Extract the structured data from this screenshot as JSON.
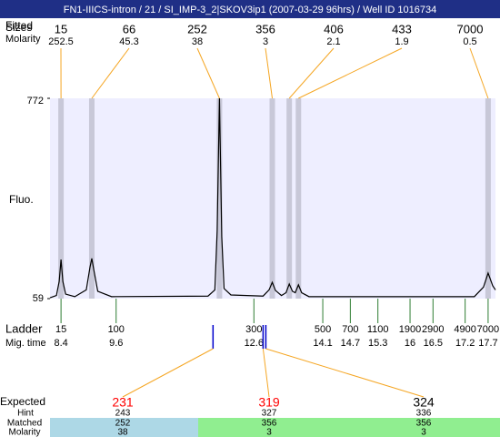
{
  "title": "FN1-IIICS-intron / 21 / SI_IMP-3_2|SKOV3ip1 (2007-03-29 96hrs) / Well ID 1016734",
  "chart_data": {
    "type": "line",
    "y_label": "Fluo.",
    "xlim": [
      8.16,
      17.86
    ],
    "ylim": [
      59,
      772
    ],
    "yticks": [
      59,
      772
    ],
    "color": "#000000",
    "x": [
      8.16,
      8.3,
      8.36,
      8.4,
      8.44,
      8.5,
      8.7,
      8.95,
      9.03,
      9.07,
      9.11,
      9.2,
      9.5,
      11.6,
      11.75,
      11.8,
      11.85,
      11.9,
      11.95,
      12.1,
      12.8,
      12.93,
      13.0,
      13.07,
      13.2,
      13.3,
      13.37,
      13.44,
      13.5,
      13.57,
      13.64,
      13.8,
      17.4,
      17.6,
      17.7,
      17.8,
      17.86
    ],
    "values": [
      62,
      70,
      120,
      198,
      120,
      75,
      66,
      90,
      170,
      202,
      165,
      85,
      66,
      68,
      90,
      300,
      772,
      280,
      95,
      72,
      68,
      90,
      117,
      88,
      70,
      80,
      111,
      85,
      80,
      108,
      80,
      66,
      66,
      100,
      150,
      105,
      90
    ],
    "peaks": {
      "fitted_label": "Fitted",
      "sizes_label": "Sizes",
      "molarity_label": "Molarity",
      "times": [
        8.4,
        9.07,
        11.85,
        13.0,
        13.37,
        13.57,
        17.7
      ],
      "sizes": [
        15,
        66,
        252,
        356,
        406,
        433,
        7000
      ],
      "molarity": [
        252.5,
        45.3,
        38,
        3,
        2.1,
        1.9,
        0.5
      ]
    },
    "ladder": {
      "label": "Ladder",
      "time_label": "Mig. time",
      "sizes": [
        15,
        100,
        300,
        500,
        700,
        1100,
        1900,
        2900,
        4900,
        7000
      ],
      "times": [
        8.4,
        9.6,
        12.6,
        14.1,
        14.7,
        15.3,
        16,
        16.5,
        17.2,
        17.7
      ]
    },
    "markers": [
      11.71,
      12.8,
      12.86
    ],
    "expected": {
      "label": "Expected",
      "hint_label": "Hint",
      "matched_label": "Matched",
      "molarity_label": "Molarity",
      "items": [
        {
          "expected": 231,
          "hint": 243,
          "matched": 252,
          "molarity": 38,
          "color": "#ff0000",
          "bg": "#add8e6"
        },
        {
          "expected": 319,
          "hint": 327,
          "matched": 356,
          "molarity": 3,
          "color": "#ff0000",
          "bg": "#90ee90"
        },
        {
          "expected": 324,
          "hint": 336,
          "matched": 356,
          "molarity": 3,
          "color": "#000000",
          "bg": "#90ee90"
        }
      ]
    }
  }
}
